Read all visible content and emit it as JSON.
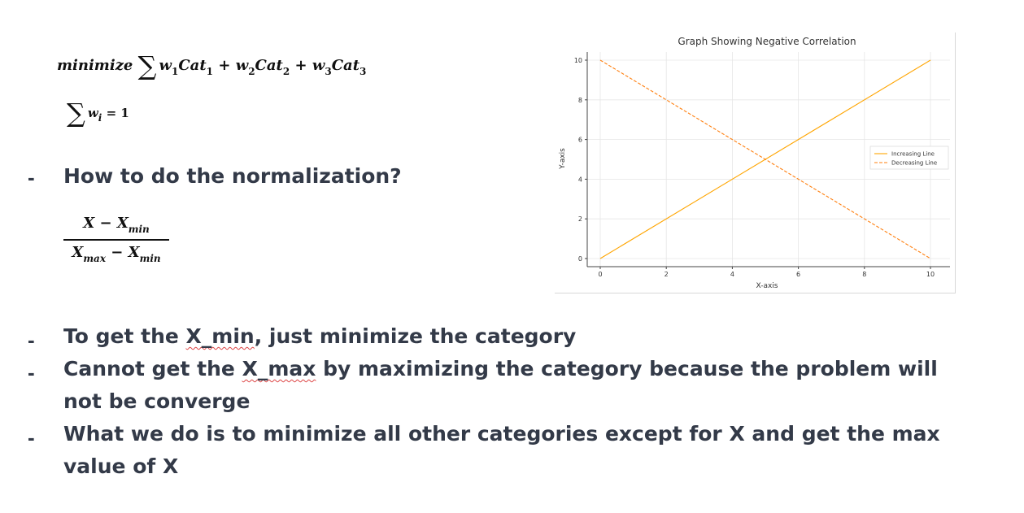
{
  "formulas": {
    "objective": {
      "keyword": "minimize",
      "sigma": "∑",
      "terms": [
        {
          "w": "w",
          "wsub": "1",
          "cat": "Cat",
          "catsub": "1"
        },
        {
          "w": "w",
          "wsub": "2",
          "cat": "Cat",
          "catsub": "2"
        },
        {
          "w": "w",
          "wsub": "3",
          "cat": "Cat",
          "catsub": "3"
        }
      ],
      "plus": "+"
    },
    "constraint": {
      "sigma": "∑",
      "var": "w",
      "sub": "i",
      "rhs": "= 1"
    },
    "normalization": {
      "num_x": "X",
      "num_minus": "−",
      "num_xmin": "X",
      "num_min_sub": "min",
      "den_xmax": "X",
      "den_max_sub": "max",
      "den_minus": "−",
      "den_xmin": "X",
      "den_min_sub": "min"
    }
  },
  "bullets": {
    "marker": "-",
    "question": "How to do the normalization?",
    "items": [
      {
        "pre": "To get the ",
        "term": "X_min",
        "post": ", just minimize the category"
      },
      {
        "pre": "Cannot get the ",
        "term": "X_max",
        "post": " by maximizing the category because the problem will not be converge"
      },
      {
        "pre": "What we do is to minimize all other categories except for X and get the max value of X",
        "term": "",
        "post": ""
      }
    ]
  },
  "chart_data": {
    "type": "line",
    "title": "Graph Showing Negative Correlation",
    "xlabel": "X-axis",
    "ylabel": "Y-axis",
    "xlim": [
      0,
      10
    ],
    "ylim": [
      0,
      10
    ],
    "xticks": [
      0,
      2,
      4,
      6,
      8,
      10
    ],
    "yticks": [
      0,
      2,
      4,
      6,
      8,
      10
    ],
    "grid": true,
    "legend": "center-right",
    "series": [
      {
        "name": "Increasing Line",
        "x": [
          0,
          10
        ],
        "y": [
          0,
          10
        ],
        "color": "#ffa500",
        "style": "solid"
      },
      {
        "name": "Decreasing Line",
        "x": [
          0,
          10
        ],
        "y": [
          10,
          0
        ],
        "color": "#ff7f0e",
        "style": "dashed"
      }
    ]
  }
}
